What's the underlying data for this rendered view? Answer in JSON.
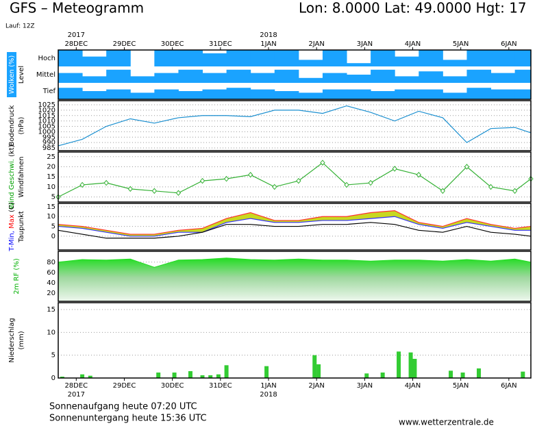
{
  "header": {
    "title": "GFS – Meteogramm",
    "location": "Lon: 8.0000 Lat: 49.0000 Hgt: 17",
    "run": "Lauf: 12Z"
  },
  "footer": {
    "sunrise": "Sonnenaufgang heute 07:20 UTC",
    "sunset": "Sonnenuntergang heute 15:36 UTC",
    "source": "www.wetterzentrale.de"
  },
  "chart_data": [
    {
      "type": "heatmap",
      "ylabel_lines": [
        [
          {
            "text": "Wolken (%)",
            "color": "#ffffff",
            "background": "#1aa3ff"
          }
        ],
        [
          {
            "text": "Level",
            "color": "#000000"
          }
        ]
      ],
      "xlim": [
        0,
        236
      ],
      "xticks": [
        {
          "value": 9,
          "label": "28DEC"
        },
        {
          "value": 33,
          "label": "29DEC"
        },
        {
          "value": 57,
          "label": "30DEC"
        },
        {
          "value": 81,
          "label": "31DEC"
        },
        {
          "value": 105,
          "label": "1JAN"
        },
        {
          "value": 129,
          "label": "2JAN"
        },
        {
          "value": 153,
          "label": "3JAN"
        },
        {
          "value": 177,
          "label": "4JAN"
        },
        {
          "value": 201,
          "label": "5JAN"
        },
        {
          "value": 225,
          "label": "6JAN"
        }
      ],
      "year_labels": [
        {
          "value": 9,
          "label": "2017"
        },
        {
          "value": 105,
          "label": "2018"
        }
      ],
      "ylim": [
        0,
        100
      ],
      "x": [
        0,
        12,
        24,
        36,
        48,
        60,
        72,
        84,
        96,
        108,
        120,
        132,
        144,
        156,
        168,
        180,
        192,
        204,
        216,
        228,
        236
      ],
      "series": [
        {
          "name": "Hoch",
          "color": "#1aa3ff",
          "values": [
            100,
            60,
            100,
            0,
            100,
            100,
            80,
            100,
            100,
            100,
            40,
            100,
            20,
            100,
            60,
            100,
            40,
            100,
            100,
            100,
            80
          ]
        },
        {
          "name": "Mittel",
          "color": "#1aa3ff",
          "values": [
            60,
            40,
            80,
            40,
            60,
            80,
            60,
            80,
            60,
            80,
            30,
            60,
            50,
            80,
            40,
            70,
            40,
            80,
            60,
            80,
            60
          ]
        },
        {
          "name": "Tief",
          "color": "#1aa3ff",
          "values": [
            70,
            50,
            60,
            40,
            60,
            50,
            60,
            70,
            60,
            50,
            40,
            60,
            60,
            50,
            60,
            60,
            40,
            70,
            60,
            60,
            60
          ]
        }
      ]
    },
    {
      "type": "line",
      "ylabel_lines": [
        [
          {
            "text": "Bodendruck",
            "color": "#000000"
          }
        ],
        [
          {
            "text": "(hPa)",
            "color": "#000000"
          }
        ]
      ],
      "xlim": [
        0,
        236
      ],
      "ylim": [
        982.5,
        1028.8
      ],
      "yticks": [
        985,
        990,
        995,
        1000,
        1005,
        1010,
        1015,
        1020,
        1025
      ],
      "grid": true,
      "x": [
        0,
        12,
        24,
        36,
        48,
        60,
        72,
        84,
        96,
        108,
        120,
        132,
        144,
        156,
        168,
        180,
        192,
        204,
        216,
        228,
        236
      ],
      "series": [
        {
          "name": "Bodendruck",
          "color": "#1a8fd0",
          "values": [
            987,
            993,
            1005,
            1012,
            1008,
            1013,
            1015,
            1015,
            1014,
            1020,
            1020,
            1017,
            1024,
            1018,
            1010,
            1019,
            1013,
            990,
            1003,
            1004,
            999
          ]
        }
      ]
    },
    {
      "type": "line",
      "markers": "diamond",
      "ylabel_lines": [
        [
          {
            "text": "Wind Geschwi.",
            "color": "#00a000"
          },
          {
            "text": " (kt)",
            "color": "#000000"
          }
        ],
        [
          {
            "text": "Windfahnen",
            "color": "#000000"
          }
        ]
      ],
      "xlim": [
        0,
        236
      ],
      "ylim": [
        2.5,
        27.3
      ],
      "yticks": [
        5,
        10,
        15,
        20,
        25
      ],
      "grid": true,
      "x": [
        0,
        12,
        24,
        36,
        48,
        60,
        72,
        84,
        96,
        108,
        120,
        132,
        144,
        156,
        168,
        180,
        192,
        204,
        216,
        228,
        236
      ],
      "series": [
        {
          "name": "Wind Geschwi.",
          "color": "#33b033",
          "values": [
            5,
            11,
            12,
            9,
            8,
            7,
            13,
            14,
            16,
            10,
            13,
            22,
            11,
            12,
            19,
            16,
            8,
            20,
            10,
            8,
            14
          ]
        }
      ]
    },
    {
      "type": "range",
      "ylabel_lines": [
        [
          {
            "text": "T-Min,",
            "color": "#0000ff"
          },
          {
            "text": " Max",
            "color": "#ff0000"
          },
          {
            "text": " (C)",
            "color": "#000000"
          }
        ],
        [
          {
            "text": "Taupunkt",
            "color": "#000000"
          }
        ]
      ],
      "xlim": [
        0,
        236
      ],
      "ylim": [
        -7,
        16.7
      ],
      "yticks": [
        0,
        5,
        10,
        15
      ],
      "grid": true,
      "fill": "#c8d820",
      "x": [
        0,
        12,
        24,
        36,
        48,
        60,
        72,
        84,
        96,
        108,
        120,
        132,
        144,
        156,
        168,
        180,
        192,
        204,
        216,
        228,
        236
      ],
      "series": [
        {
          "name": "Max",
          "color": "#ff3030",
          "values": [
            6,
            5,
            3,
            1,
            1,
            3,
            4,
            9,
            12,
            8,
            8,
            10,
            10,
            12,
            13,
            7,
            5,
            9,
            6,
            4,
            5
          ]
        },
        {
          "name": "Min",
          "color": "#3030ff",
          "values": [
            5,
            4,
            2,
            0,
            0,
            2,
            2,
            7,
            9,
            7,
            7,
            8,
            8,
            9,
            10,
            6,
            4,
            7,
            5,
            3,
            3
          ]
        },
        {
          "name": "Taupunkt",
          "color": "#000000",
          "values": [
            3,
            1,
            -1,
            -1,
            -1,
            0,
            2,
            6,
            6,
            5,
            5,
            6,
            6,
            7,
            6,
            3,
            2,
            5,
            2,
            1,
            0
          ]
        }
      ]
    },
    {
      "type": "area",
      "ylabel_lines": [
        [
          {
            "text": "2m RF (%)",
            "color": "#00b000"
          }
        ]
      ],
      "xlim": [
        0,
        236
      ],
      "ylim": [
        4,
        101
      ],
      "yticks": [
        20,
        40,
        60,
        80
      ],
      "grid": true,
      "x": [
        0,
        12,
        24,
        36,
        48,
        60,
        72,
        84,
        96,
        108,
        120,
        132,
        144,
        156,
        168,
        180,
        192,
        204,
        216,
        228,
        236
      ],
      "series": [
        {
          "name": "2m RF",
          "color": "#22dd22",
          "values": [
            80,
            85,
            84,
            86,
            70,
            84,
            85,
            88,
            85,
            84,
            86,
            84,
            84,
            82,
            84,
            84,
            82,
            85,
            82,
            86,
            80
          ]
        }
      ]
    },
    {
      "type": "bar",
      "ylabel_lines": [
        [
          {
            "text": "Niederschlag",
            "color": "#000000"
          }
        ],
        [
          {
            "text": "(mm)",
            "color": "#000000"
          }
        ]
      ],
      "xlim": [
        0,
        236
      ],
      "ylim": [
        0,
        16.5
      ],
      "yticks": [
        0,
        5,
        10,
        15
      ],
      "grid": true,
      "xticks": [
        {
          "value": 9,
          "label": "28DEC"
        },
        {
          "value": 33,
          "label": "29DEC"
        },
        {
          "value": 57,
          "label": "30DEC"
        },
        {
          "value": 81,
          "label": "31DEC"
        },
        {
          "value": 105,
          "label": "1JAN"
        },
        {
          "value": 129,
          "label": "2JAN"
        },
        {
          "value": 153,
          "label": "3JAN"
        },
        {
          "value": 177,
          "label": "4JAN"
        },
        {
          "value": 201,
          "label": "5JAN"
        },
        {
          "value": 225,
          "label": "6JAN"
        }
      ],
      "year_labels": [
        {
          "value": 9,
          "label": "2017"
        },
        {
          "value": 105,
          "label": "2018"
        }
      ],
      "x": [
        2,
        12,
        16,
        50,
        58,
        66,
        72,
        76,
        80,
        84,
        104,
        128,
        130,
        154,
        162,
        170,
        176,
        178,
        196,
        202,
        210,
        232
      ],
      "series": [
        {
          "name": "Niederschlag",
          "color": "#33cc33",
          "values": [
            0.3,
            0.8,
            0.5,
            1.2,
            1.2,
            1.5,
            0.6,
            0.6,
            0.8,
            2.8,
            2.6,
            5.0,
            3.0,
            1.0,
            1.2,
            5.8,
            5.6,
            4.2,
            1.6,
            1.2,
            2.1,
            1.4
          ]
        }
      ]
    }
  ]
}
